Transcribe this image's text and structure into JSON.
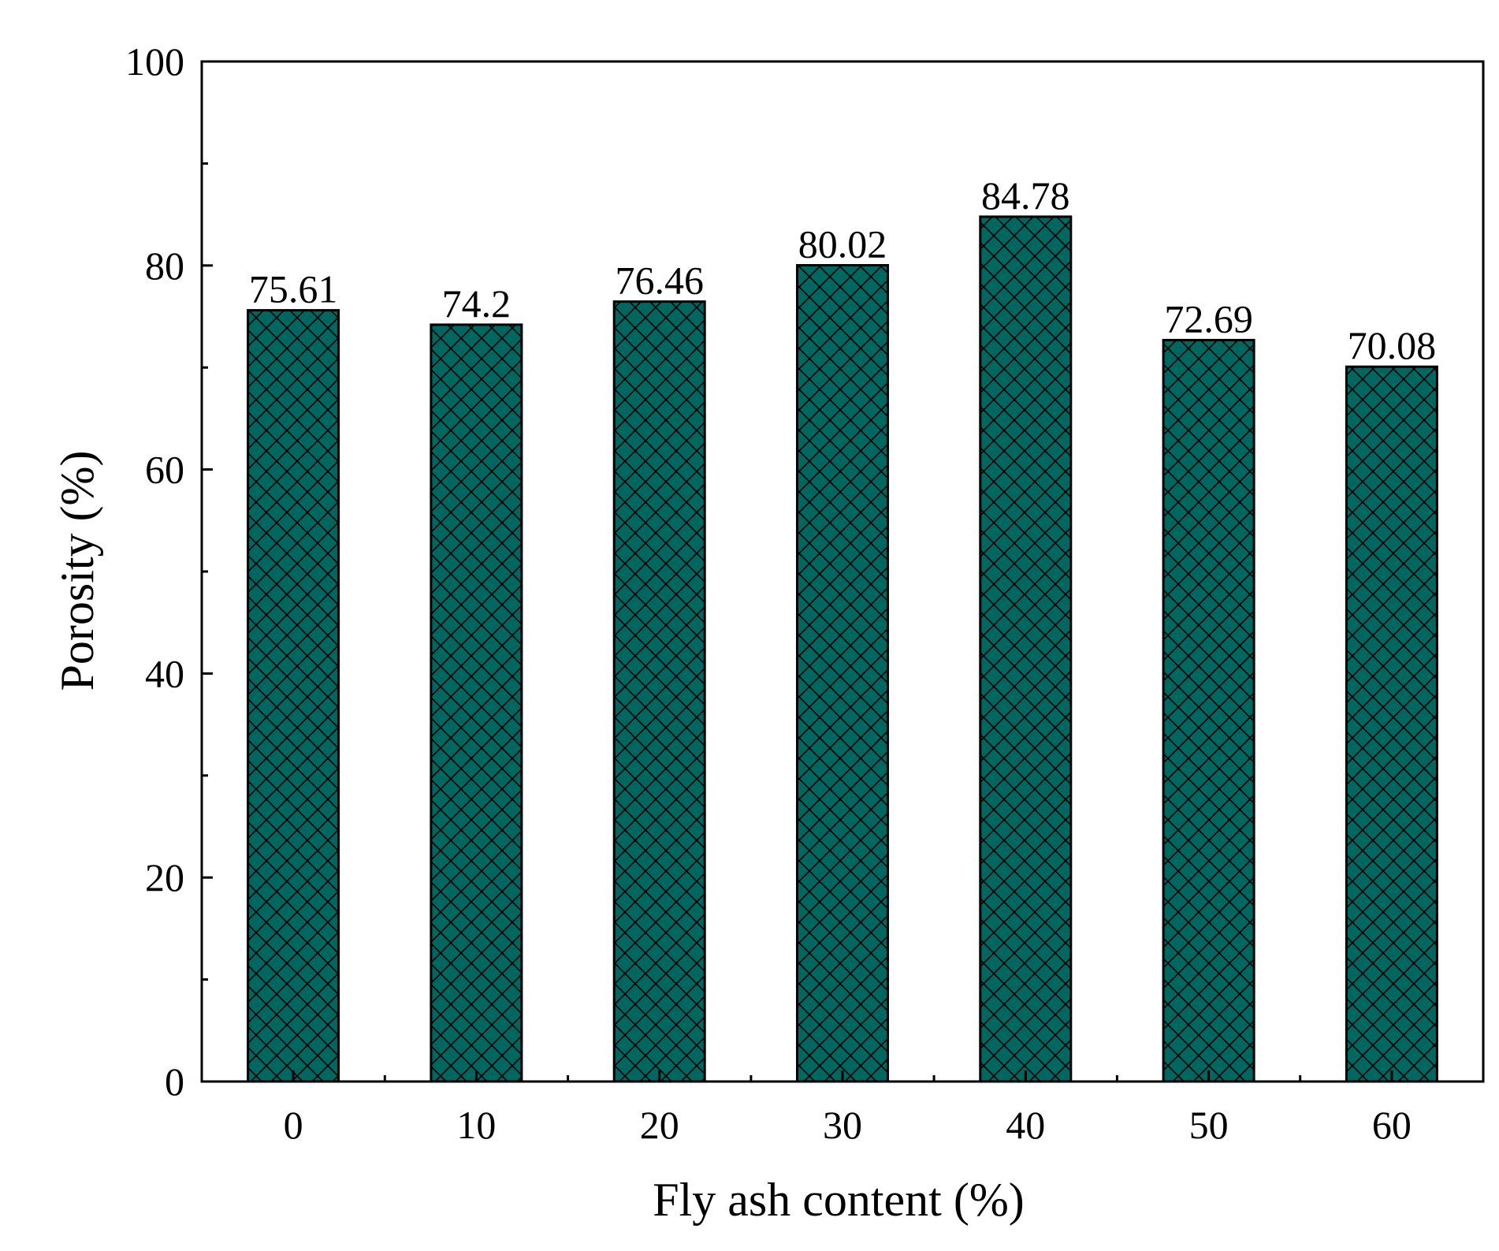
{
  "chart_data": {
    "type": "bar",
    "categories": [
      "0",
      "10",
      "20",
      "30",
      "40",
      "50",
      "60"
    ],
    "values": [
      75.61,
      74.2,
      76.46,
      80.02,
      84.78,
      72.69,
      70.08
    ],
    "data_labels": [
      "75.61",
      "74.2",
      "76.46",
      "80.02",
      "84.78",
      "72.69",
      "70.08"
    ],
    "title": "",
    "xlabel": "Fly ash content (%)",
    "ylabel": "Porosity (%)",
    "ylim": [
      0,
      100
    ],
    "yticks": [
      0,
      20,
      40,
      60,
      80,
      100
    ],
    "ytick_labels": [
      "0",
      "20",
      "40",
      "60",
      "80",
      "100"
    ],
    "grid": false,
    "legend": "none",
    "bar_fill_color": "#006660",
    "bar_hatch": "crosshatch",
    "hatch_color": "#000000",
    "axis_color": "#000000",
    "background_color": "#ffffff"
  }
}
